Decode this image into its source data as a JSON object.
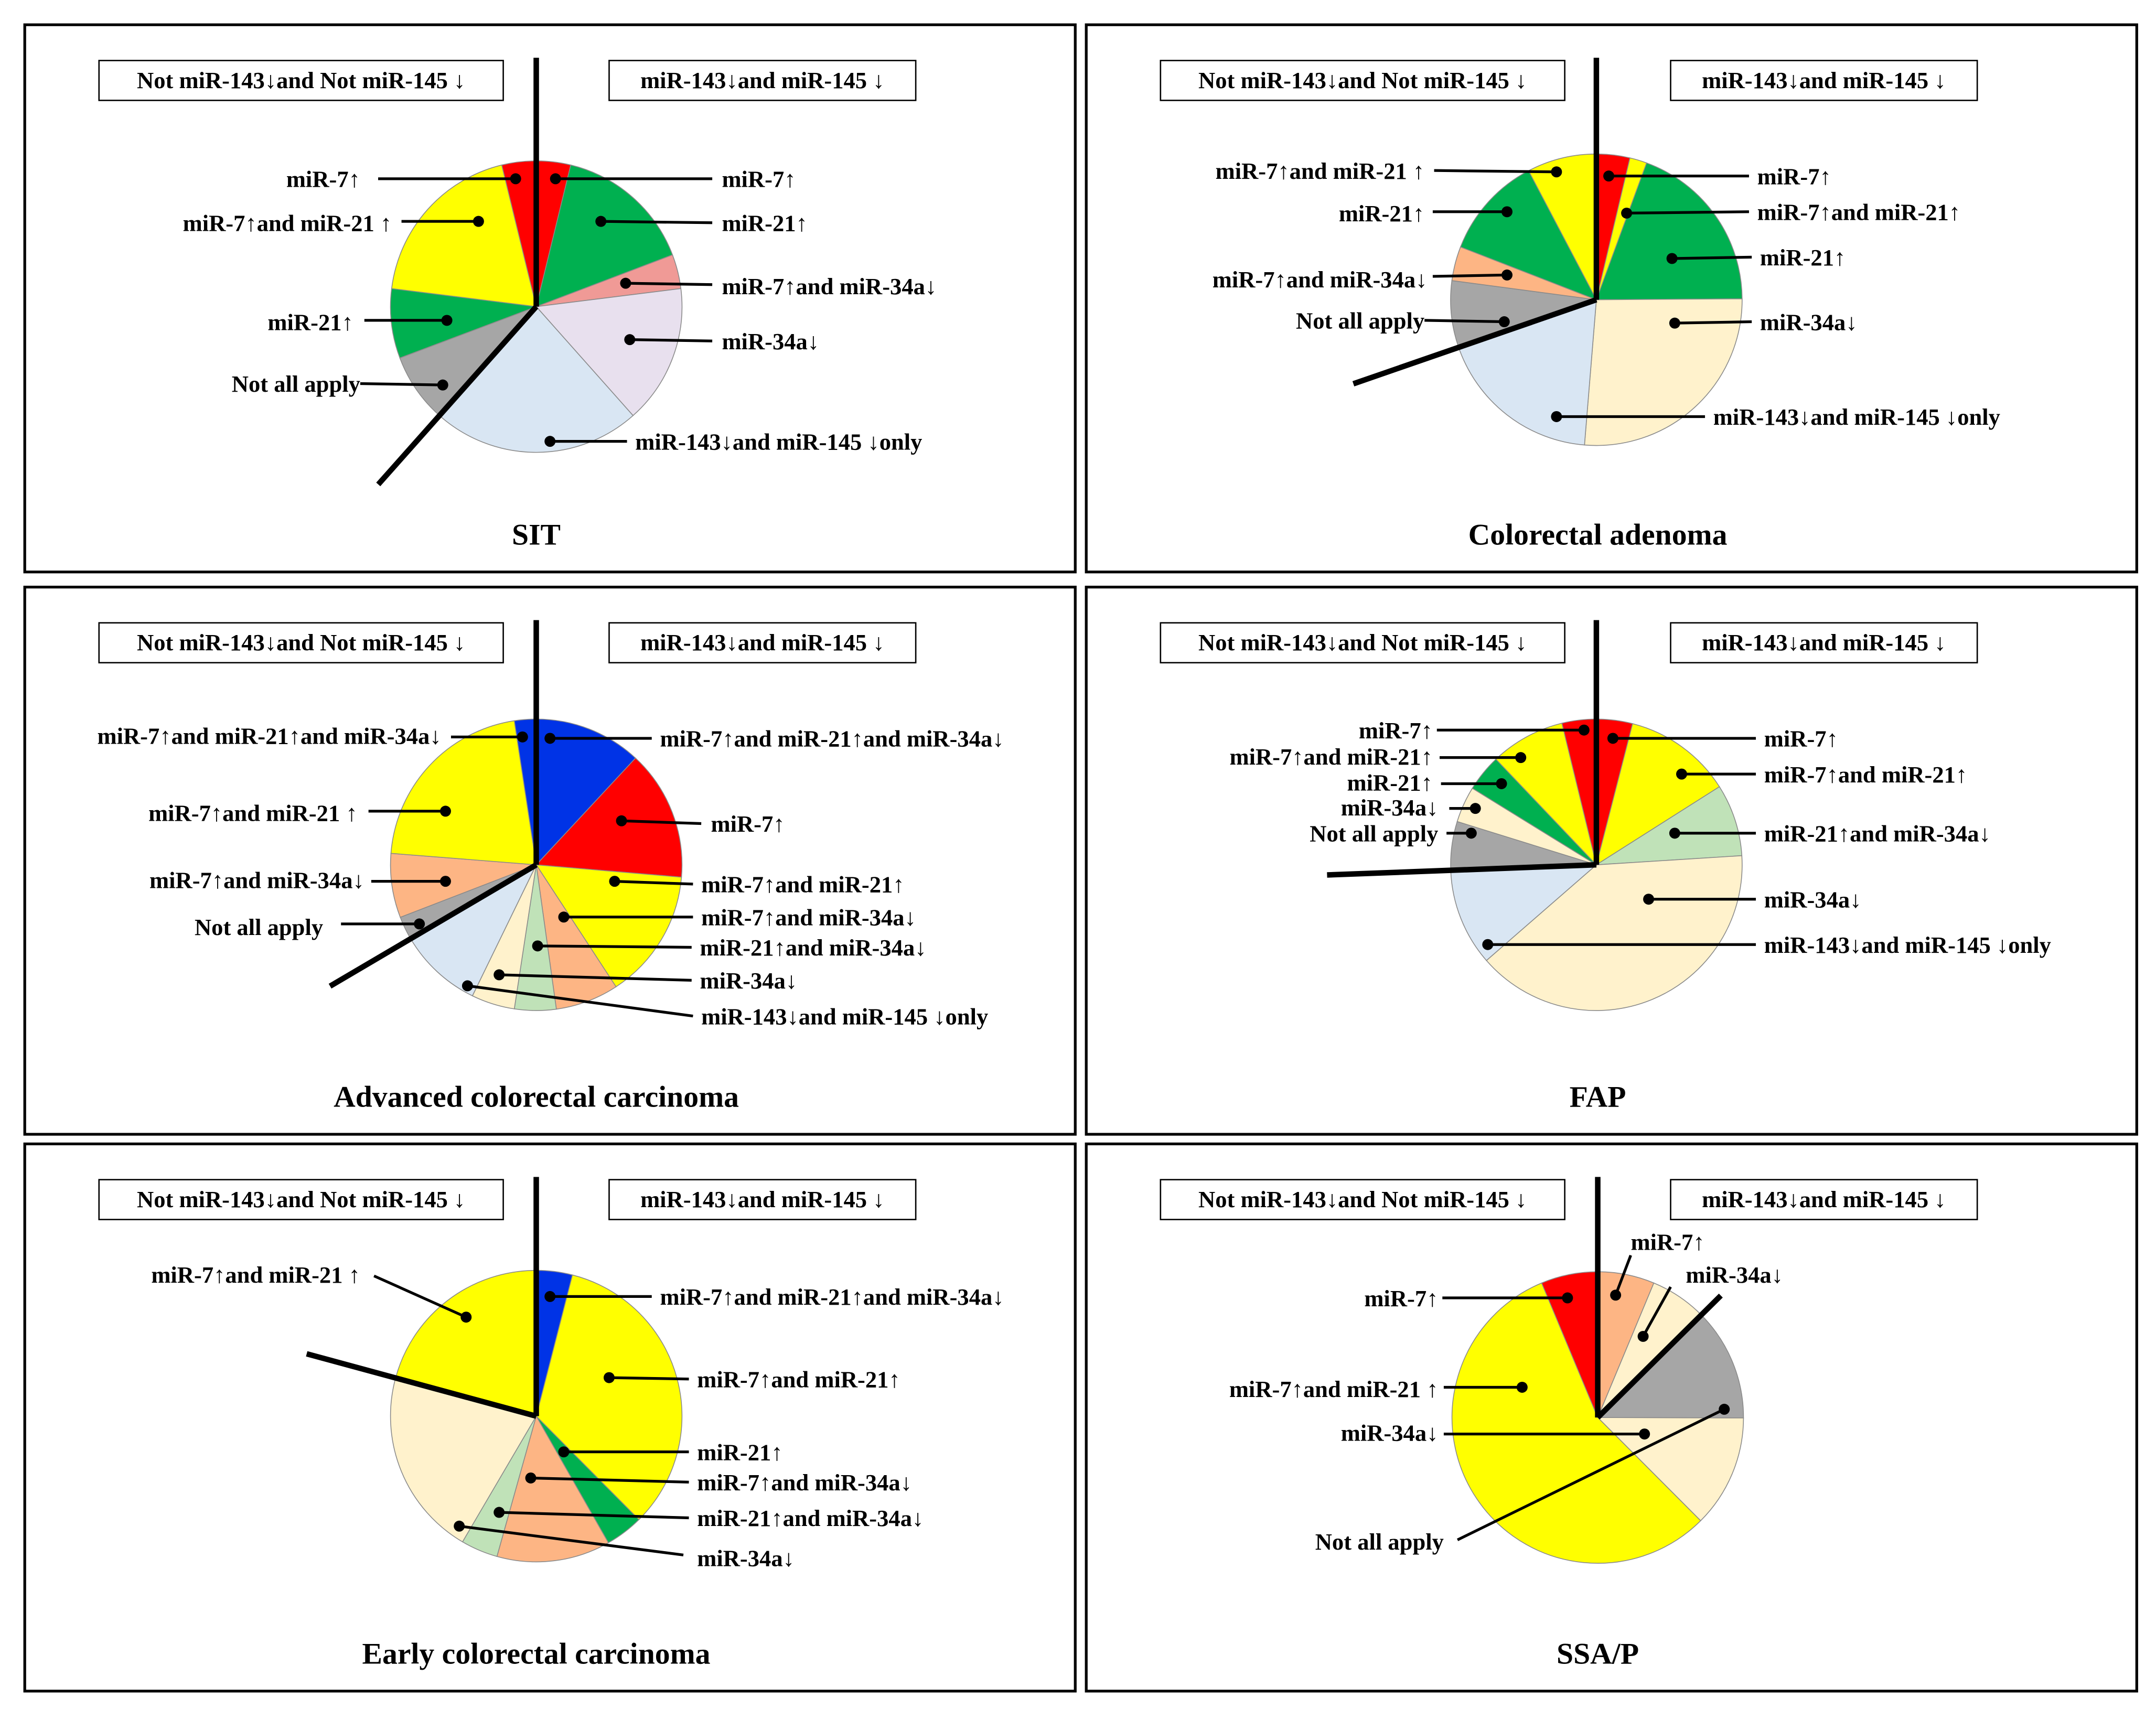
{
  "colors": {
    "red": "#FF0000",
    "green": "#00B050",
    "yellow": "#FFFF00",
    "pink": "#F09A96",
    "lavender": "#E8E0EE",
    "lightblue": "#D9E6F3",
    "gray": "#A6A6A6",
    "orange": "#FDB584",
    "cream": "#FFF2CC",
    "lightgreen": "#C0E2B8",
    "blue": "#0033E6"
  },
  "chart_data": [
    {
      "type": "pie",
      "title": "SIT",
      "start": "12 o'clock",
      "direction": "clockwise",
      "unit": "percent (estimated)",
      "groups": {
        "left": "Not miR-143↓and Not miR-145 ↓",
        "right": "miR-143↓and miR-145 ↓"
      },
      "slices": [
        {
          "label": "miR-7↑",
          "value": 3.8,
          "color": "red",
          "group": "right"
        },
        {
          "label": "miR-21↑",
          "value": 15.4,
          "color": "green",
          "group": "right"
        },
        {
          "label": "miR-7↑and miR-34a↓",
          "value": 3.8,
          "color": "pink",
          "group": "right"
        },
        {
          "label": "miR-34a↓",
          "value": 15.4,
          "color": "lavender",
          "group": "right"
        },
        {
          "label": "miR-143↓and miR-145 ↓only",
          "value": 23.1,
          "color": "lightblue",
          "group": "right"
        },
        {
          "label": "Not all apply",
          "value": 7.7,
          "color": "gray",
          "group": "left"
        },
        {
          "label": "miR-21↑",
          "value": 7.7,
          "color": "green",
          "group": "left"
        },
        {
          "label": "miR-7↑and miR-21 ↑",
          "value": 19.2,
          "color": "yellow",
          "group": "left"
        },
        {
          "label": "miR-7↑",
          "value": 3.8,
          "color": "red",
          "group": "left"
        }
      ]
    },
    {
      "type": "pie",
      "title": "Colorectal adenoma",
      "start": "12 o'clock",
      "direction": "clockwise",
      "unit": "percent (estimated)",
      "groups": {
        "left": "Not miR-143↓and Not miR-145 ↓",
        "right": "miR-143↓and miR-145 ↓"
      },
      "slices": [
        {
          "label": "miR-7↑",
          "value": 3.7,
          "color": "red",
          "group": "right"
        },
        {
          "label": "miR-7↑and miR-21↑",
          "value": 1.9,
          "color": "yellow",
          "group": "right"
        },
        {
          "label": "miR-21↑",
          "value": 19.3,
          "color": "green",
          "group": "right"
        },
        {
          "label": "miR-34a↓",
          "value": 26.4,
          "color": "cream",
          "group": "right"
        },
        {
          "label": "miR-143↓and miR-145 ↓only",
          "value": 18.4,
          "color": "lightblue",
          "group": "right"
        },
        {
          "label": "Not all apply",
          "value": 7.4,
          "color": "gray",
          "group": "left"
        },
        {
          "label": "miR-7↑and miR-34a↓",
          "value": 3.8,
          "color": "orange",
          "group": "left"
        },
        {
          "label": "miR-21↑",
          "value": 11.4,
          "color": "green",
          "group": "left"
        },
        {
          "label": "miR-7↑and miR-21 ↑",
          "value": 7.7,
          "color": "yellow",
          "group": "left"
        }
      ]
    },
    {
      "type": "pie",
      "title": "Advanced colorectal carcinoma",
      "start": "12 o'clock",
      "direction": "clockwise",
      "unit": "percent (estimated)",
      "groups": {
        "left": "Not miR-143↓and Not miR-145 ↓",
        "right": "miR-143↓and miR-145 ↓"
      },
      "slices": [
        {
          "label": "miR-7↑and miR-21↑and miR-34a↓",
          "value": 11.9,
          "color": "blue",
          "group": "right"
        },
        {
          "label": "miR-7↑",
          "value": 14.4,
          "color": "red",
          "group": "right"
        },
        {
          "label": "miR-7↑and miR-21↑",
          "value": 14.4,
          "color": "yellow",
          "group": "right"
        },
        {
          "label": "miR-7↑and miR-34a↓",
          "value": 7.0,
          "color": "orange",
          "group": "right"
        },
        {
          "label": "miR-21↑and miR-34a↓",
          "value": 4.6,
          "color": "lightgreen",
          "group": "right"
        },
        {
          "label": "miR-34a↓",
          "value": 4.8,
          "color": "cream",
          "group": "right"
        },
        {
          "label": "miR-143↓and miR-145 ↓only",
          "value": 9.3,
          "color": "lightblue",
          "group": "right"
        },
        {
          "label": "Not all apply",
          "value": 2.6,
          "color": "gray",
          "group": "left"
        },
        {
          "label": "miR-7↑and miR-34a↓",
          "value": 7.1,
          "color": "orange",
          "group": "left"
        },
        {
          "label": "miR-7↑and miR-21 ↑",
          "value": 21.3,
          "color": "yellow",
          "group": "left"
        },
        {
          "label": "miR-7↑and miR-21↑and miR-34a↓",
          "value": 2.4,
          "color": "blue",
          "group": "left"
        }
      ]
    },
    {
      "type": "pie",
      "title": "FAP",
      "start": "12 o'clock",
      "direction": "clockwise",
      "unit": "percent (estimated)",
      "groups": {
        "left": "Not miR-143↓and Not miR-145 ↓",
        "right": "miR-143↓and miR-145 ↓"
      },
      "slices": [
        {
          "label": "miR-7↑",
          "value": 4.0,
          "color": "red",
          "group": "right"
        },
        {
          "label": "miR-7↑and miR-21↑",
          "value": 12.0,
          "color": "yellow",
          "group": "right"
        },
        {
          "label": "miR-21↑and miR-34a↓",
          "value": 8.0,
          "color": "lightgreen",
          "group": "right"
        },
        {
          "label": "miR-34a↓",
          "value": 39.6,
          "color": "cream",
          "group": "right"
        },
        {
          "label": "miR-143↓and miR-145 ↓only",
          "value": 10.8,
          "color": "lightblue",
          "group": "right"
        },
        {
          "label": "Not all apply",
          "value": 5.4,
          "color": "gray",
          "group": "left"
        },
        {
          "label": "miR-34a↓",
          "value": 4.0,
          "color": "cream",
          "group": "left"
        },
        {
          "label": "miR-21↑",
          "value": 4.1,
          "color": "green",
          "group": "left"
        },
        {
          "label": "miR-7↑and miR-21↑",
          "value": 8.3,
          "color": "yellow",
          "group": "left"
        },
        {
          "label": "miR-7↑",
          "value": 3.8,
          "color": "red",
          "group": "left"
        }
      ]
    },
    {
      "type": "pie",
      "title": "Early colorectal carcinoma",
      "start": "12 o'clock",
      "direction": "clockwise",
      "unit": "percent (estimated)",
      "groups": {
        "left": "Not miR-143↓and Not miR-145 ↓",
        "right": "miR-143↓and miR-145 ↓"
      },
      "slices": [
        {
          "label": "miR-7↑and miR-21↑and miR-34a↓",
          "value": 4.0,
          "color": "blue",
          "group": "right"
        },
        {
          "label": "miR-7↑and miR-21↑",
          "value": 33.6,
          "color": "yellow",
          "group": "right"
        },
        {
          "label": "miR-21↑",
          "value": 4.2,
          "color": "green",
          "group": "right"
        },
        {
          "label": "miR-7↑and miR-34a↓",
          "value": 12.6,
          "color": "orange",
          "group": "right"
        },
        {
          "label": "miR-21↑and miR-34a↓",
          "value": 4.1,
          "color": "lightgreen",
          "group": "right"
        },
        {
          "label": "miR-34a↓",
          "value": 20.8,
          "color": "cream",
          "group": "right"
        },
        {
          "label": "miR-7↑and miR-21 ↑",
          "value": 20.8,
          "color": "yellow",
          "group": "left"
        }
      ]
    },
    {
      "type": "pie",
      "title": "SSA/P",
      "start": "12 o'clock",
      "direction": "clockwise",
      "unit": "percent (estimated)",
      "groups": {
        "left": "Not miR-143↓and Not miR-145 ↓",
        "right": "miR-143↓and miR-145 ↓"
      },
      "slices": [
        {
          "label": "miR-7↑",
          "value": 6.3,
          "color": "orange",
          "group": "right"
        },
        {
          "label": "miR-34a↓",
          "value": 6.3,
          "color": "cream",
          "group": "right"
        },
        {
          "label": "Not all apply",
          "value": 12.5,
          "color": "gray",
          "group": "left"
        },
        {
          "label": "miR-34a↓",
          "value": 12.5,
          "color": "cream",
          "group": "left"
        },
        {
          "label": "miR-7↑and miR-21 ↑",
          "value": 56.3,
          "color": "yellow",
          "group": "left"
        },
        {
          "label": "miR-7↑",
          "value": 6.3,
          "color": "red",
          "group": "left"
        }
      ]
    }
  ]
}
